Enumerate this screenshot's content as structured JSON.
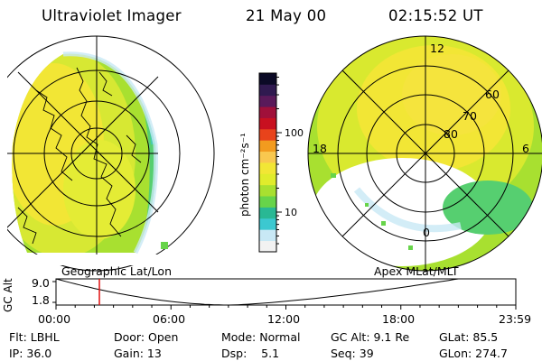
{
  "header": {
    "instrument": "Ultraviolet Imager",
    "date": "21 May 00",
    "time": "02:15:52 UT"
  },
  "panels": {
    "geographic_caption": "Geographic Lat/Lon",
    "apex_caption": "Apex MLat/MLT",
    "apex_lat_labels": [
      "60",
      "70",
      "80"
    ],
    "apex_mlt_labels": [
      "12",
      "18",
      "6",
      "0"
    ]
  },
  "colorbar": {
    "unit_label": "photon cm⁻²s⁻¹",
    "ticks": [
      {
        "label": "100",
        "value": 100
      },
      {
        "label": "10",
        "value": 10
      }
    ],
    "colors": [
      "#f2f2f2",
      "#c8e8f5",
      "#3cc8d0",
      "#29b894",
      "#67d44a",
      "#a8e030",
      "#e0ec2c",
      "#f2e635",
      "#f9c84f",
      "#f29b1f",
      "#e8431b",
      "#c81020",
      "#a0103a",
      "#5a1a5a",
      "#301a50",
      "#0b0a26"
    ]
  },
  "timeline": {
    "axis_label": "GC Alt",
    "y_ticks": [
      "9.0",
      "1.8"
    ],
    "x_ticks": [
      "00:00",
      "06:00",
      "12:00",
      "18:00",
      "23:59"
    ],
    "current_time_hours": 2.264
  },
  "status": {
    "row1": [
      "Flt: LBHL",
      "Door: Open",
      "Mode: Normal",
      "GC Alt: 9.1 Re",
      "GLat: 85.5"
    ],
    "row2": [
      "IP: 36.0",
      "Gain: 13",
      "Dsp:    5.1",
      "Seq: 39",
      "GLon: 274.7"
    ]
  }
}
